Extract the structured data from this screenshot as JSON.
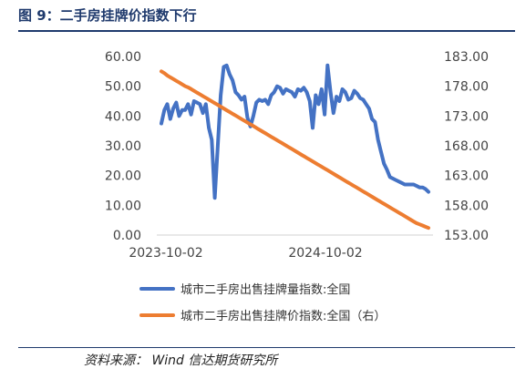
{
  "header": {
    "title": "图 9：二手房挂牌价指数下行"
  },
  "footer": {
    "source": "资料来源：  Wind  信达期货研究所"
  },
  "chart_data": {
    "type": "line",
    "x_tick_labels": [
      "2023-10-02",
      "2024-10-02"
    ],
    "y_left": {
      "ticks": [
        "0.00",
        "10.00",
        "20.00",
        "30.00",
        "40.00",
        "50.00",
        "60.00"
      ],
      "min": 0,
      "max": 60
    },
    "y_right": {
      "ticks": [
        "153.00",
        "158.00",
        "163.00",
        "168.00",
        "173.00",
        "178.00",
        "183.00"
      ],
      "min": 153,
      "max": 183
    },
    "grid": false,
    "legend_position": "bottom",
    "series": [
      {
        "name": "城市二手房出售挂牌量指数:全国",
        "axis": "left",
        "color": "#4472C4",
        "values": [
          37.5,
          42,
          44,
          39,
          42.5,
          44.5,
          40,
          42,
          42,
          44,
          40.5,
          45,
          44.5,
          44,
          41,
          44,
          36,
          32,
          12.5,
          30,
          47,
          56.5,
          57,
          54,
          52,
          48,
          47,
          45.5,
          46.5,
          39.5,
          36.5,
          40,
          44.5,
          45.5,
          45,
          45.5,
          44,
          47,
          48,
          50,
          49.5,
          47.5,
          49,
          48.5,
          48,
          46.5,
          49,
          48.5,
          49.5,
          48,
          45,
          36,
          47,
          44,
          49,
          40.5,
          57,
          48,
          41,
          46.5,
          45,
          49,
          48,
          45.5,
          46,
          48.5,
          47.5,
          46,
          45.5,
          44,
          42.5,
          39,
          38,
          32,
          28,
          24,
          22,
          19.5,
          19,
          18.5,
          18,
          17.5,
          17,
          17,
          17,
          17,
          16.5,
          16,
          16,
          15.5,
          14.5
        ]
      },
      {
        "name": "城市二手房出售挂牌价指数:全国（右）",
        "axis": "right",
        "color": "#ED7D31",
        "values": [
          180.5,
          180.2,
          179.8,
          179.5,
          179.2,
          178.9,
          178.6,
          178.3,
          178.0,
          177.8,
          177.5,
          177.2,
          176.9,
          176.6,
          176.3,
          176.0,
          175.7,
          175.4,
          175.1,
          174.8,
          174.5,
          174.2,
          173.9,
          173.6,
          173.3,
          173.0,
          172.7,
          172.4,
          172.1,
          171.8,
          171.5,
          171.2,
          170.9,
          170.6,
          170.3,
          170.0,
          169.7,
          169.4,
          169.1,
          168.8,
          168.5,
          168.2,
          167.9,
          167.6,
          167.3,
          167.0,
          166.7,
          166.4,
          166.1,
          165.8,
          165.5,
          165.2,
          164.9,
          164.6,
          164.3,
          164.0,
          163.7,
          163.4,
          163.1,
          162.8,
          162.5,
          162.2,
          161.9,
          161.6,
          161.3,
          161.0,
          160.7,
          160.4,
          160.1,
          159.8,
          159.5,
          159.2,
          158.9,
          158.6,
          158.3,
          158.0,
          157.7,
          157.4,
          157.1,
          156.8,
          156.5,
          156.2,
          155.9,
          155.6,
          155.3,
          155.0,
          154.8,
          154.6,
          154.4,
          154.2
        ]
      }
    ]
  }
}
